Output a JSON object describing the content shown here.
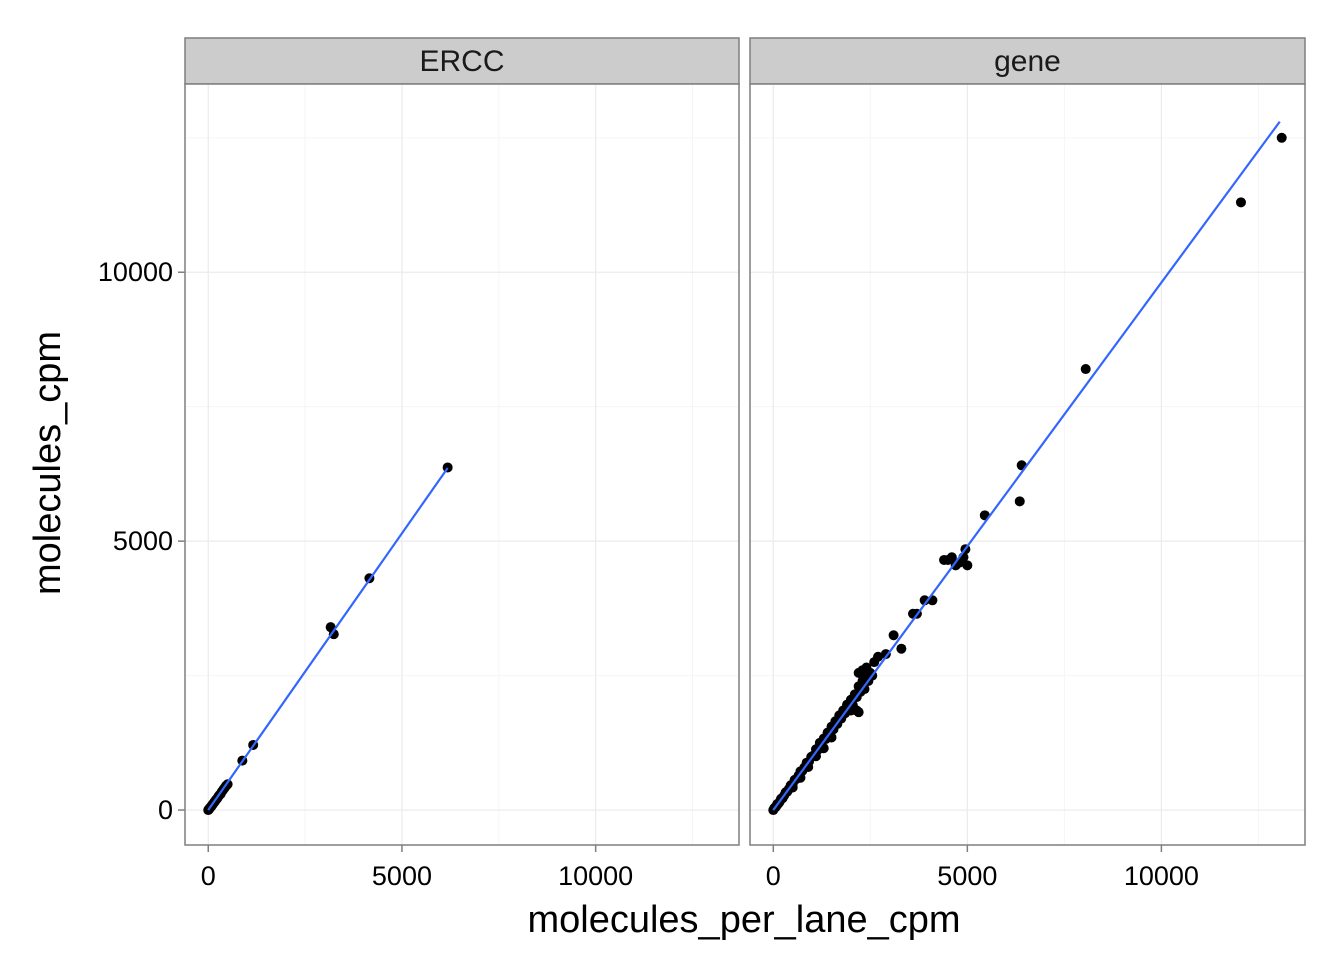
{
  "chart_data": {
    "type": "scatter",
    "xlabel": "molecules_per_lane_cpm",
    "ylabel": "molecules_cpm",
    "xlim": [
      -600,
      13700
    ],
    "ylim": [
      -650,
      13500
    ],
    "x_ticks": [
      0,
      5000,
      10000
    ],
    "y_ticks": [
      0,
      5000,
      10000
    ],
    "grid": true,
    "point_color": "#000000",
    "line_color": "#3366FF",
    "panel_border_color": "#7f7f7f",
    "strip_fill": "#cccccc",
    "grid_color": "#ebebeb",
    "panels": [
      {
        "label": "ERCC",
        "fit_line": {
          "x": [
            0,
            6180
          ],
          "y": [
            0,
            6360
          ]
        },
        "points": [
          [
            0,
            0
          ],
          [
            10,
            8
          ],
          [
            20,
            15
          ],
          [
            30,
            28
          ],
          [
            45,
            40
          ],
          [
            60,
            55
          ],
          [
            80,
            70
          ],
          [
            100,
            90
          ],
          [
            120,
            110
          ],
          [
            150,
            140
          ],
          [
            170,
            160
          ],
          [
            200,
            190
          ],
          [
            230,
            215
          ],
          [
            260,
            250
          ],
          [
            290,
            280
          ],
          [
            320,
            300
          ],
          [
            350,
            340
          ],
          [
            380,
            370
          ],
          [
            420,
            410
          ],
          [
            460,
            450
          ],
          [
            500,
            480
          ],
          [
            880,
            920
          ],
          [
            1160,
            1210
          ],
          [
            3160,
            3400
          ],
          [
            3240,
            3270
          ],
          [
            4160,
            4310
          ],
          [
            6180,
            6370
          ]
        ]
      },
      {
        "label": "gene",
        "fit_line": {
          "x": [
            0,
            13050
          ],
          "y": [
            0,
            12800
          ]
        },
        "points": [
          [
            0,
            0
          ],
          [
            20,
            25
          ],
          [
            40,
            45
          ],
          [
            60,
            55
          ],
          [
            80,
            75
          ],
          [
            100,
            110
          ],
          [
            130,
            120
          ],
          [
            160,
            150
          ],
          [
            200,
            210
          ],
          [
            240,
            220
          ],
          [
            280,
            270
          ],
          [
            320,
            330
          ],
          [
            360,
            340
          ],
          [
            400,
            390
          ],
          [
            450,
            460
          ],
          [
            500,
            480
          ],
          [
            550,
            560
          ],
          [
            600,
            580
          ],
          [
            650,
            640
          ],
          [
            700,
            720
          ],
          [
            750,
            730
          ],
          [
            800,
            790
          ],
          [
            860,
            880
          ],
          [
            920,
            900
          ],
          [
            980,
            990
          ],
          [
            1050,
            1020
          ],
          [
            1100,
            1130
          ],
          [
            1150,
            1120
          ],
          [
            1200,
            1250
          ],
          [
            1250,
            1200
          ],
          [
            1300,
            1330
          ],
          [
            1350,
            1320
          ],
          [
            1400,
            1440
          ],
          [
            1450,
            1400
          ],
          [
            1500,
            1550
          ],
          [
            1550,
            1500
          ],
          [
            1600,
            1650
          ],
          [
            1650,
            1600
          ],
          [
            1700,
            1760
          ],
          [
            1750,
            1700
          ],
          [
            1800,
            1850
          ],
          [
            1850,
            1800
          ],
          [
            1900,
            1960
          ],
          [
            1950,
            1900
          ],
          [
            2000,
            2050
          ],
          [
            2050,
            1950
          ],
          [
            2100,
            2150
          ],
          [
            2150,
            2100
          ],
          [
            2200,
            2300
          ],
          [
            2250,
            2200
          ],
          [
            2300,
            2400
          ],
          [
            2350,
            2250
          ],
          [
            2400,
            2500
          ],
          [
            2450,
            2400
          ],
          [
            2500,
            2550
          ],
          [
            2550,
            2500
          ],
          [
            2200,
            2550
          ],
          [
            2300,
            2600
          ],
          [
            2400,
            2650
          ],
          [
            2600,
            2750
          ],
          [
            2700,
            2850
          ],
          [
            2000,
            1850
          ],
          [
            2150,
            1850
          ],
          [
            2200,
            1820
          ],
          [
            1100,
            1000
          ],
          [
            1300,
            1150
          ],
          [
            1500,
            1350
          ],
          [
            900,
            800
          ],
          [
            700,
            600
          ],
          [
            500,
            420
          ],
          [
            2900,
            2900
          ],
          [
            3100,
            3250
          ],
          [
            3300,
            3000
          ],
          [
            3600,
            3650
          ],
          [
            3700,
            3650
          ],
          [
            3900,
            3900
          ],
          [
            4100,
            3900
          ],
          [
            4400,
            4650
          ],
          [
            4500,
            4650
          ],
          [
            4600,
            4700
          ],
          [
            4700,
            4550
          ],
          [
            4800,
            4600
          ],
          [
            4900,
            4700
          ],
          [
            4950,
            4850
          ],
          [
            5000,
            4550
          ],
          [
            5450,
            5480
          ],
          [
            6350,
            5740
          ],
          [
            6400,
            6410
          ],
          [
            8050,
            8200
          ],
          [
            12050,
            11300
          ],
          [
            13100,
            12500
          ]
        ]
      }
    ]
  }
}
